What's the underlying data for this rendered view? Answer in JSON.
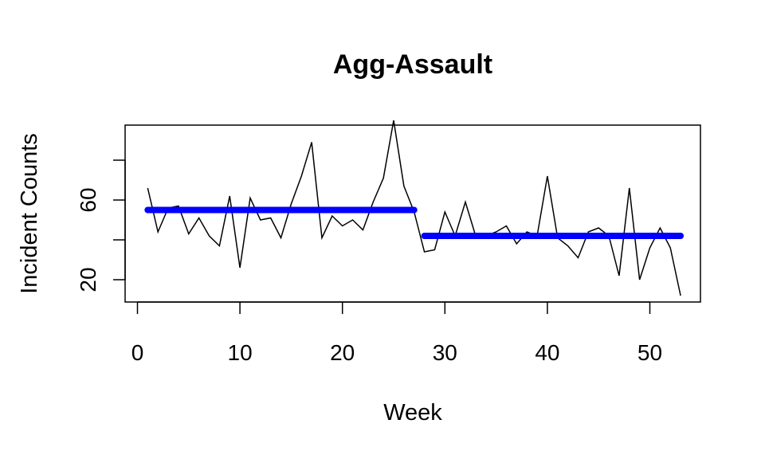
{
  "chart_data": {
    "type": "line",
    "title": "Agg-Assault",
    "xlabel": "Week",
    "ylabel": "Incident Counts",
    "xlim": [
      1,
      53
    ],
    "ylim": [
      12,
      95
    ],
    "x_ticks": [
      0,
      10,
      20,
      30,
      40,
      50
    ],
    "y_ticks": [
      20,
      60
    ],
    "grid": false,
    "series": [
      {
        "type": "line",
        "color": "#000000",
        "x": [
          1,
          2,
          3,
          4,
          5,
          6,
          7,
          8,
          9,
          10,
          11,
          12,
          13,
          14,
          15,
          16,
          17,
          18,
          19,
          20,
          21,
          22,
          23,
          24,
          25,
          26,
          27,
          28,
          29,
          30,
          31,
          32,
          33,
          34,
          35,
          36,
          37,
          38,
          39,
          40,
          41,
          42,
          43,
          44,
          45,
          46,
          47,
          48,
          49,
          50,
          51,
          52,
          53
        ],
        "values": [
          66,
          44,
          56,
          57,
          43,
          51,
          42,
          37,
          62,
          26,
          61,
          50,
          51,
          41,
          58,
          72,
          89,
          41,
          52,
          47,
          50,
          45,
          59,
          71,
          100,
          67,
          54,
          34,
          35,
          54,
          42,
          59,
          42,
          42,
          44,
          47,
          38,
          44,
          42,
          72,
          41,
          37,
          31,
          44,
          46,
          42,
          22,
          66,
          20,
          36,
          46,
          36,
          12
        ]
      },
      {
        "type": "segment",
        "color": "#0000ff",
        "x": [
          1,
          27
        ],
        "values": [
          55,
          55
        ]
      },
      {
        "type": "segment",
        "color": "#0000ff",
        "x": [
          28,
          53
        ],
        "values": [
          42,
          42
        ]
      }
    ]
  }
}
